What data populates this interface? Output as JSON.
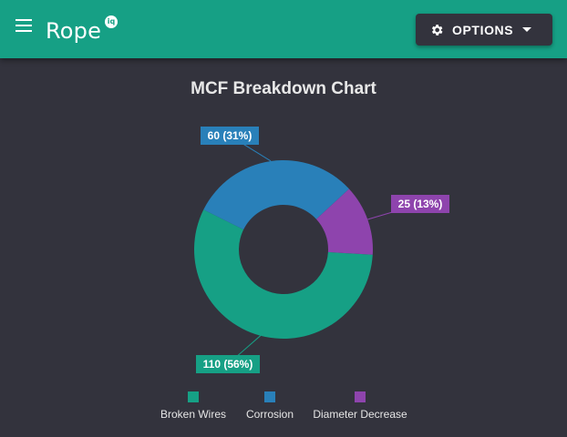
{
  "app": {
    "logo_text": "Rope",
    "logo_badge": "iq",
    "menu_icon": "hamburger-menu-icon",
    "options_label": "OPTIONS",
    "options_icon": "gear-icon",
    "options_caret_icon": "caret-down-icon"
  },
  "colors": {
    "header": "#16a085",
    "background": "#33333d",
    "broken_wires": "#16a085",
    "corrosion": "#2980b9",
    "diameter_decrease": "#8e44ad"
  },
  "chart_data": {
    "type": "pie",
    "donut": true,
    "title": "MCF Breakdown Chart",
    "categories": [
      "Broken Wires",
      "Corrosion",
      "Diameter Decrease"
    ],
    "values": [
      110,
      60,
      25
    ],
    "labels": [
      "110 (56%)",
      "60 (31%)",
      "25 (13%)"
    ],
    "colors": [
      "#16a085",
      "#2980b9",
      "#8e44ad"
    ],
    "legend_position": "bottom"
  }
}
